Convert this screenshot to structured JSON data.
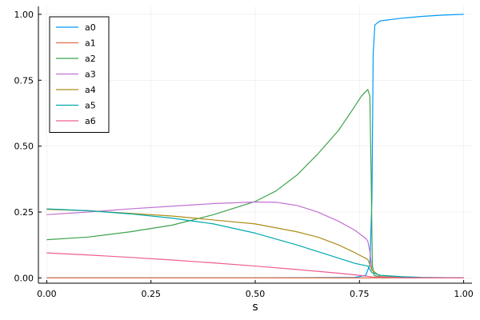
{
  "chart_data": {
    "type": "line",
    "xlabel": "s",
    "ylabel": "",
    "xlim": [
      -0.02,
      1.02
    ],
    "ylim": [
      -0.02,
      1.03
    ],
    "grid": true,
    "legend_position": "top-left",
    "x_ticks": [
      0.0,
      0.25,
      0.5,
      0.75,
      1.0
    ],
    "x_tick_labels": [
      "0.00",
      "0.25",
      "0.50",
      "0.75",
      "1.00"
    ],
    "y_ticks": [
      0.0,
      0.25,
      0.5,
      0.75,
      1.0
    ],
    "y_tick_labels": [
      "0.00",
      "0.25",
      "0.50",
      "0.75",
      "1.00"
    ],
    "series": [
      {
        "name": "a0",
        "color": "#009af9",
        "points": [
          [
            0,
            0
          ],
          [
            0.5,
            0
          ],
          [
            0.74,
            0.002
          ],
          [
            0.765,
            0.01
          ],
          [
            0.775,
            0.05
          ],
          [
            0.78,
            0.3
          ],
          [
            0.783,
            0.85
          ],
          [
            0.787,
            0.96
          ],
          [
            0.8,
            0.975
          ],
          [
            0.85,
            0.985
          ],
          [
            0.9,
            0.992
          ],
          [
            0.95,
            0.997
          ],
          [
            1.0,
            1.0
          ]
        ]
      },
      {
        "name": "a1",
        "color": "#e26f46",
        "points": [
          [
            0,
            0
          ],
          [
            0.5,
            0
          ],
          [
            0.75,
            0
          ],
          [
            0.78,
            0
          ],
          [
            1.0,
            0
          ]
        ]
      },
      {
        "name": "a2",
        "color": "#3da44d",
        "points": [
          [
            0,
            0.145
          ],
          [
            0.1,
            0.155
          ],
          [
            0.2,
            0.175
          ],
          [
            0.3,
            0.2
          ],
          [
            0.4,
            0.24
          ],
          [
            0.5,
            0.29
          ],
          [
            0.55,
            0.33
          ],
          [
            0.6,
            0.39
          ],
          [
            0.65,
            0.47
          ],
          [
            0.7,
            0.56
          ],
          [
            0.73,
            0.63
          ],
          [
            0.755,
            0.69
          ],
          [
            0.77,
            0.715
          ],
          [
            0.775,
            0.69
          ],
          [
            0.778,
            0.4
          ],
          [
            0.781,
            0.05
          ],
          [
            0.785,
            0.01
          ],
          [
            0.8,
            0.003
          ],
          [
            0.9,
            0
          ],
          [
            1.0,
            0
          ]
        ]
      },
      {
        "name": "a3",
        "color": "#c271d2",
        "points": [
          [
            0,
            0.24
          ],
          [
            0.1,
            0.25
          ],
          [
            0.2,
            0.262
          ],
          [
            0.3,
            0.272
          ],
          [
            0.4,
            0.282
          ],
          [
            0.5,
            0.288
          ],
          [
            0.55,
            0.287
          ],
          [
            0.6,
            0.275
          ],
          [
            0.65,
            0.25
          ],
          [
            0.7,
            0.215
          ],
          [
            0.74,
            0.18
          ],
          [
            0.765,
            0.15
          ],
          [
            0.77,
            0.14
          ],
          [
            0.775,
            0.1
          ],
          [
            0.78,
            0.03
          ],
          [
            0.8,
            0.005
          ],
          [
            0.9,
            0
          ],
          [
            1.0,
            0
          ]
        ]
      },
      {
        "name": "a4",
        "color": "#ac8d18",
        "points": [
          [
            0,
            0.26
          ],
          [
            0.1,
            0.255
          ],
          [
            0.2,
            0.245
          ],
          [
            0.3,
            0.235
          ],
          [
            0.4,
            0.22
          ],
          [
            0.5,
            0.205
          ],
          [
            0.6,
            0.175
          ],
          [
            0.65,
            0.155
          ],
          [
            0.7,
            0.125
          ],
          [
            0.74,
            0.095
          ],
          [
            0.77,
            0.07
          ],
          [
            0.78,
            0.03
          ],
          [
            0.8,
            0.005
          ],
          [
            0.9,
            0
          ],
          [
            1.0,
            0
          ]
        ]
      },
      {
        "name": "a5",
        "color": "#00a9ad",
        "points": [
          [
            0,
            0.262
          ],
          [
            0.1,
            0.255
          ],
          [
            0.2,
            0.243
          ],
          [
            0.3,
            0.227
          ],
          [
            0.4,
            0.205
          ],
          [
            0.5,
            0.17
          ],
          [
            0.6,
            0.125
          ],
          [
            0.65,
            0.1
          ],
          [
            0.7,
            0.075
          ],
          [
            0.74,
            0.055
          ],
          [
            0.77,
            0.045
          ],
          [
            0.78,
            0.02
          ],
          [
            0.8,
            0.01
          ],
          [
            0.85,
            0.005
          ],
          [
            0.9,
            0.002
          ],
          [
            1.0,
            0
          ]
        ]
      },
      {
        "name": "a6",
        "color": "#ed5d92",
        "points": [
          [
            0,
            0.095
          ],
          [
            0.1,
            0.087
          ],
          [
            0.2,
            0.078
          ],
          [
            0.3,
            0.068
          ],
          [
            0.4,
            0.057
          ],
          [
            0.5,
            0.045
          ],
          [
            0.6,
            0.032
          ],
          [
            0.7,
            0.018
          ],
          [
            0.75,
            0.01
          ],
          [
            0.78,
            0.004
          ],
          [
            0.85,
            0.001
          ],
          [
            1.0,
            0
          ]
        ]
      }
    ]
  }
}
